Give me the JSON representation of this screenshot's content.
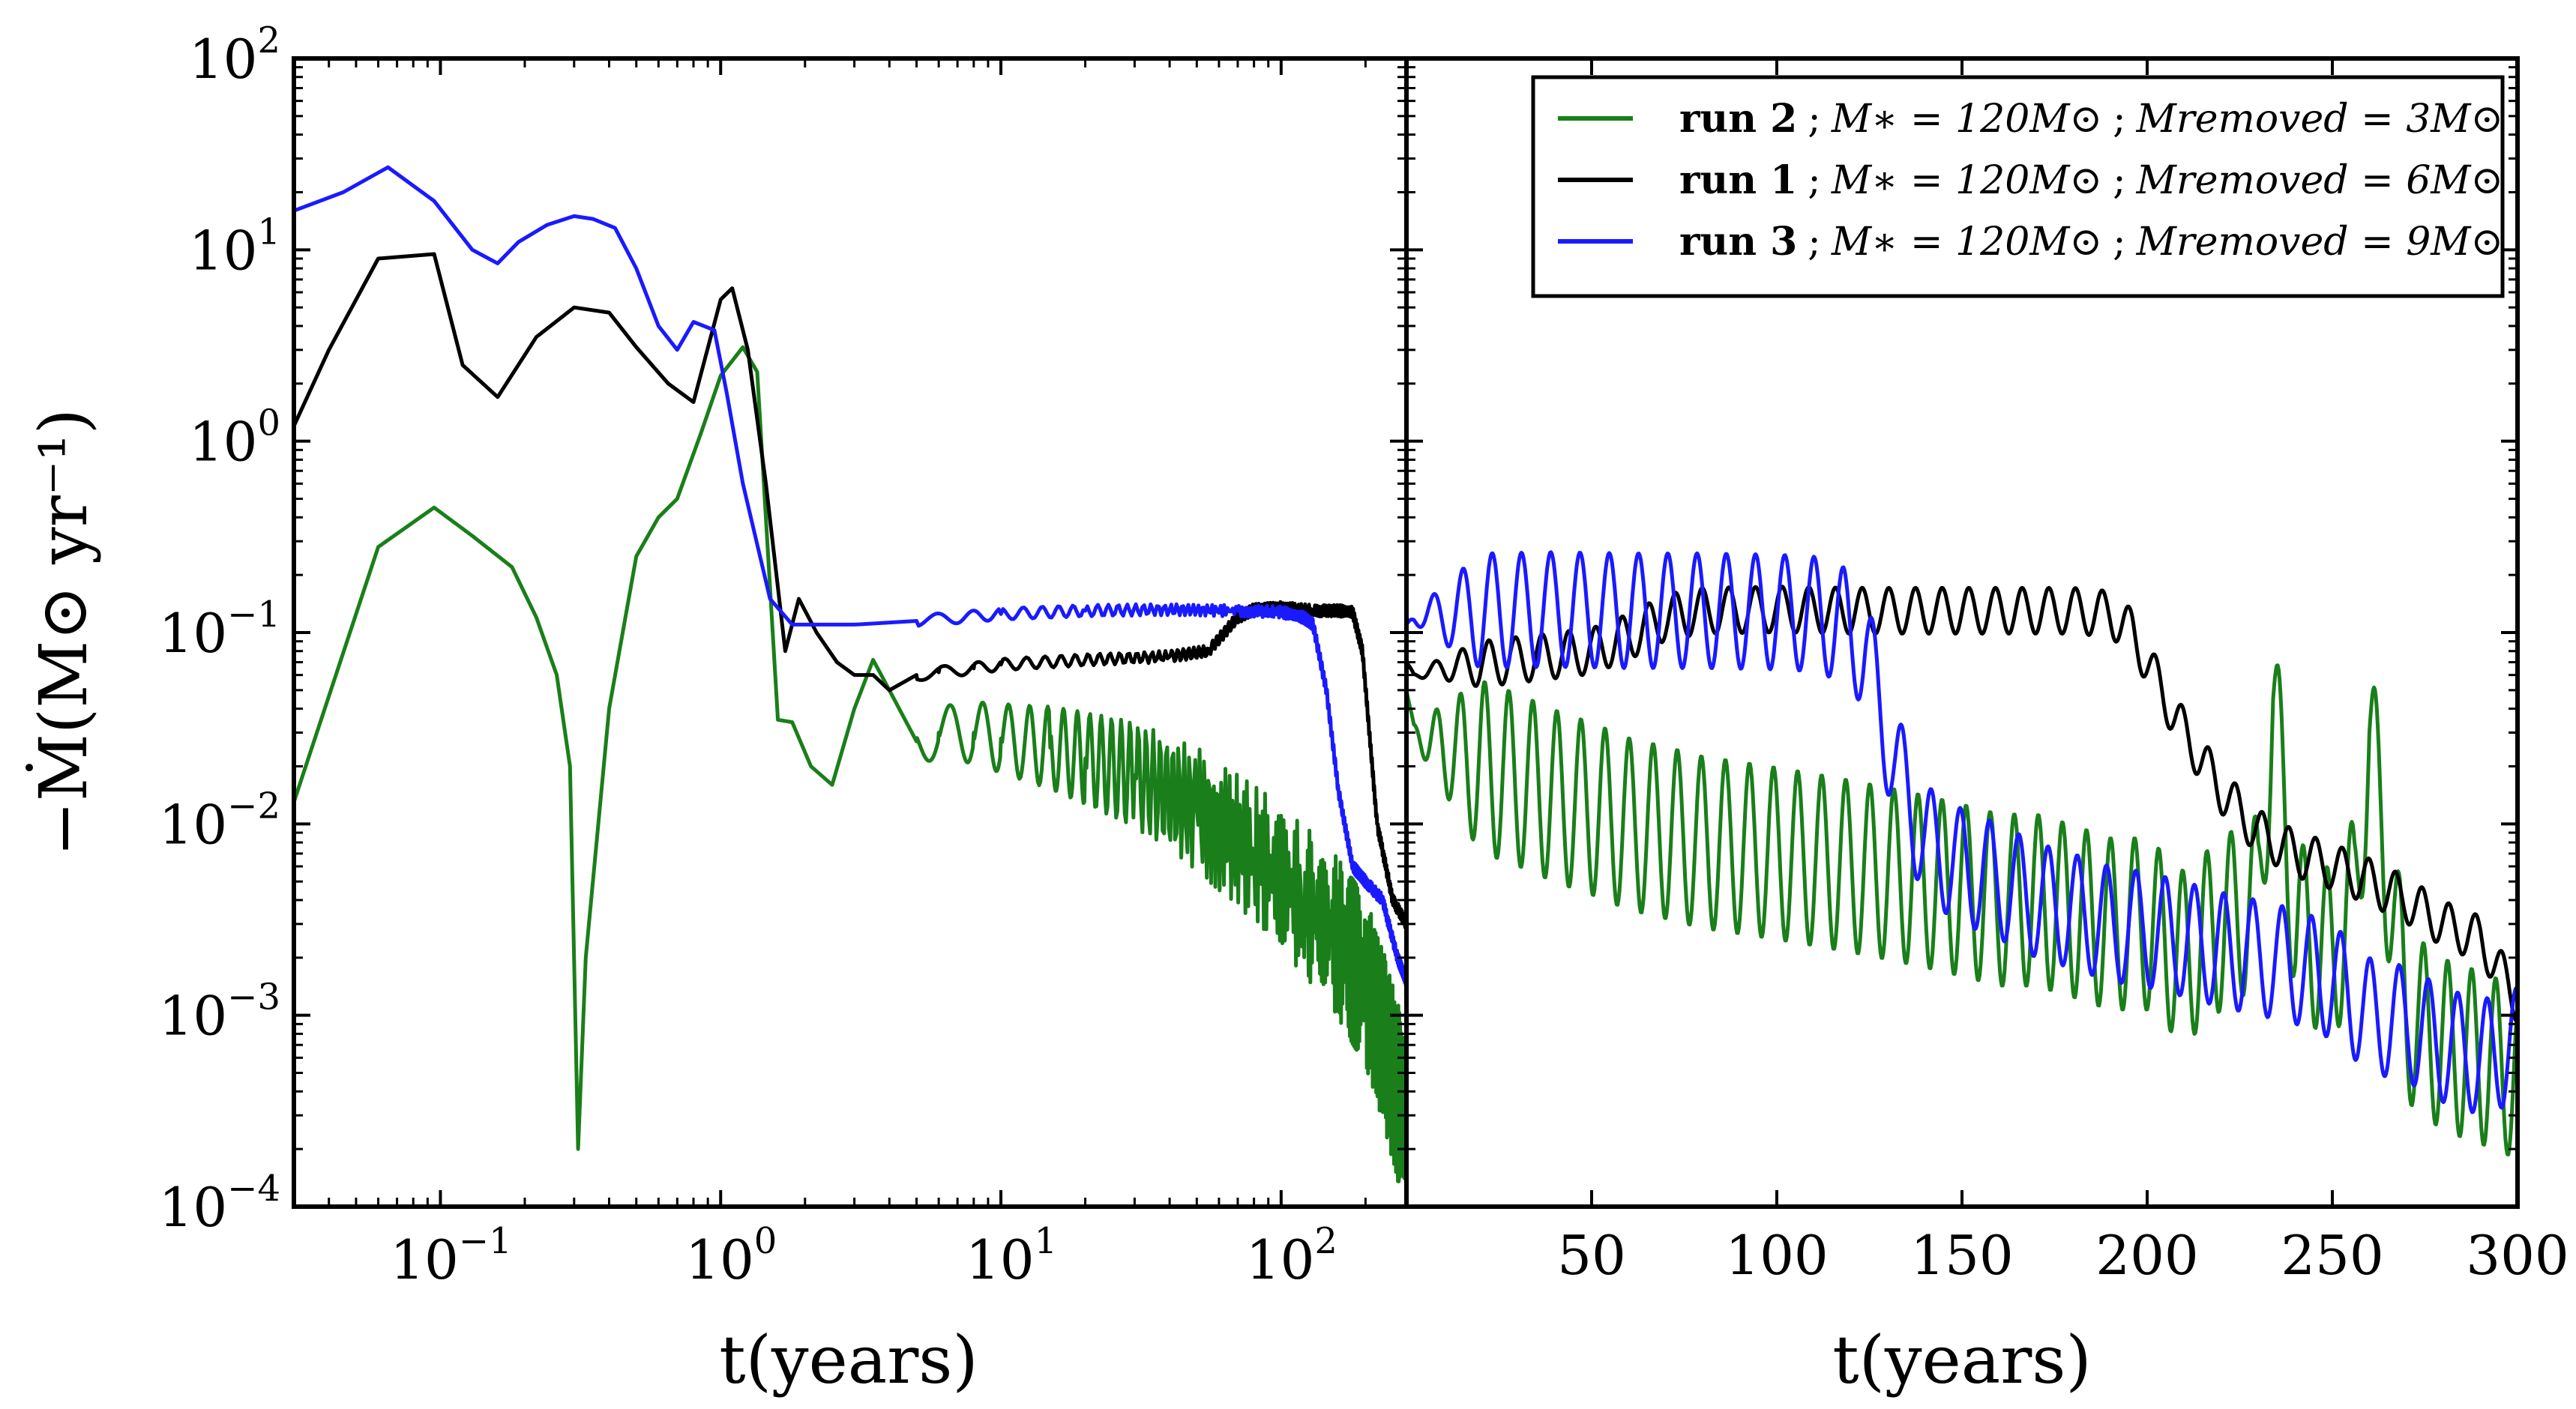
{
  "chart_data": [
    {
      "panel": "left",
      "type": "line",
      "x_scale": "log",
      "y_scale": "log",
      "xlim": [
        0.03,
        280
      ],
      "ylim": [
        0.0001,
        100
      ],
      "xlabel": "t(years)",
      "ylabel": "−Ṁ(M⊙ yr⁻¹)",
      "x_ticks": [
        {
          "value": 0.1,
          "base": "10",
          "exp": "−1"
        },
        {
          "value": 1,
          "base": "10",
          "exp": "0"
        },
        {
          "value": 10,
          "base": "10",
          "exp": "1"
        },
        {
          "value": 100,
          "base": "10",
          "exp": "2"
        }
      ],
      "y_ticks": [
        {
          "value": 0.0001,
          "base": "10",
          "exp": "−4"
        },
        {
          "value": 0.001,
          "base": "10",
          "exp": "−3"
        },
        {
          "value": 0.01,
          "base": "10",
          "exp": "−2"
        },
        {
          "value": 0.1,
          "base": "10",
          "exp": "−1"
        },
        {
          "value": 1,
          "base": "10",
          "exp": "0"
        },
        {
          "value": 10,
          "base": "10",
          "exp": "1"
        },
        {
          "value": 100,
          "base": "10",
          "exp": "2"
        }
      ],
      "series": [
        {
          "name": "run 2",
          "color": "#1a7f1a",
          "x": [
            0.03,
            0.06,
            0.095,
            0.13,
            0.18,
            0.22,
            0.26,
            0.29,
            0.31,
            0.33,
            0.4,
            0.5,
            0.6,
            0.7,
            0.85,
            1.0,
            1.2,
            1.35,
            1.6,
            1.8,
            2.1,
            2.5,
            3.0,
            3.5,
            4.0,
            5.0,
            6.0,
            8.0,
            10.0,
            15.0,
            20.0,
            30.0,
            50.0,
            80.0,
            120.0,
            160.0,
            200.0,
            230.0,
            260.0,
            280.0
          ],
          "y": [
            0.013,
            0.28,
            0.45,
            0.32,
            0.22,
            0.12,
            0.06,
            0.02,
            0.0002,
            0.002,
            0.04,
            0.25,
            0.4,
            0.5,
            1.1,
            2.2,
            3.1,
            2.3,
            0.035,
            0.034,
            0.02,
            0.016,
            0.04,
            0.072,
            0.05,
            0.027,
            0.03,
            0.03,
            0.028,
            0.025,
            0.022,
            0.018,
            0.012,
            0.007,
            0.004,
            0.0025,
            0.0015,
            0.0008,
            0.0004,
            0.0003
          ]
        },
        {
          "name": "run 1",
          "color": "#000000",
          "x": [
            0.03,
            0.04,
            0.06,
            0.095,
            0.12,
            0.16,
            0.22,
            0.3,
            0.4,
            0.5,
            0.65,
            0.8,
            1.0,
            1.1,
            1.25,
            1.45,
            1.7,
            1.9,
            2.2,
            2.6,
            3.0,
            3.5,
            4.0,
            5.0,
            6.0,
            8.0,
            10.0,
            20.0,
            40.0,
            55.0,
            70.0,
            80.0,
            100.0,
            130.0,
            160.0,
            180.0,
            195.0,
            220.0,
            250.0,
            280.0
          ],
          "y": [
            1.2,
            3.0,
            9.0,
            9.5,
            2.5,
            1.7,
            3.5,
            5.0,
            4.7,
            3.1,
            2.0,
            1.6,
            5.5,
            6.3,
            3.0,
            0.6,
            0.08,
            0.15,
            0.1,
            0.07,
            0.06,
            0.06,
            0.05,
            0.06,
            0.062,
            0.065,
            0.068,
            0.072,
            0.075,
            0.08,
            0.12,
            0.132,
            0.135,
            0.13,
            0.13,
            0.128,
            0.08,
            0.01,
            0.004,
            0.003
          ]
        },
        {
          "name": "run 3",
          "color": "#1a1aff",
          "x": [
            0.03,
            0.045,
            0.065,
            0.095,
            0.13,
            0.16,
            0.19,
            0.24,
            0.3,
            0.35,
            0.42,
            0.5,
            0.6,
            0.7,
            0.8,
            0.95,
            1.05,
            1.2,
            1.5,
            1.8,
            2.2,
            3.0,
            5.0,
            10.0,
            20.0,
            40.0,
            70.0,
            100.0,
            120.0,
            130.0,
            145.0,
            160.0,
            180.0,
            200.0,
            230.0,
            260.0,
            280.0
          ],
          "y": [
            16.0,
            20.0,
            27.0,
            18.0,
            10.0,
            8.5,
            11.0,
            13.5,
            15.0,
            14.5,
            13.0,
            8.0,
            4.0,
            3.0,
            4.2,
            3.8,
            1.8,
            0.6,
            0.15,
            0.11,
            0.11,
            0.11,
            0.115,
            0.125,
            0.13,
            0.132,
            0.13,
            0.128,
            0.12,
            0.11,
            0.05,
            0.015,
            0.006,
            0.005,
            0.004,
            0.002,
            0.0015
          ]
        }
      ]
    },
    {
      "panel": "right",
      "type": "line",
      "x_scale": "linear",
      "y_scale": "log",
      "xlim": [
        0,
        300
      ],
      "ylim": [
        0.0001,
        100
      ],
      "xlabel": "t(years)",
      "x_ticks": [
        50,
        100,
        150,
        200,
        250,
        300
      ],
      "legend": {
        "placement": "top-right",
        "entries": [
          {
            "run": "run 2",
            "sep": ";",
            "mstar": "M∗ = 120M⊙",
            "mremoved": "Mremoved = 3M⊙",
            "color": "#1a7f1a"
          },
          {
            "run": "run 1",
            "sep": ";",
            "mstar": "M∗ = 120M⊙",
            "mremoved": "Mremoved = 6M⊙",
            "color": "#000000"
          },
          {
            "run": "run 3",
            "sep": ";",
            "mstar": "M∗ = 120M⊙",
            "mremoved": "Mremoved = 9M⊙",
            "color": "#1a1aff"
          }
        ]
      },
      "series": [
        {
          "name": "run 2",
          "color": "#1a7f1a",
          "x": [
            0,
            2,
            5,
            10,
            20,
            30,
            40,
            50,
            60,
            70,
            80,
            90,
            100,
            110,
            120,
            130,
            140,
            150,
            160,
            170,
            180,
            190,
            200,
            210,
            220,
            230,
            234,
            240,
            250,
            256,
            260,
            270,
            280,
            290,
            300
          ],
          "y": [
            0.05,
            0.03,
            0.028,
            0.025,
            0.02,
            0.017,
            0.014,
            0.012,
            0.01,
            0.009,
            0.008,
            0.0075,
            0.007,
            0.0065,
            0.006,
            0.0055,
            0.005,
            0.0045,
            0.004,
            0.004,
            0.0035,
            0.003,
            0.003,
            0.002,
            0.003,
            0.004,
            0.045,
            0.003,
            0.002,
            0.004,
            0.03,
            0.001,
            0.0007,
            0.0006,
            0.0005
          ],
          "oscillation": 0.45
        },
        {
          "name": "run 1",
          "color": "#000000",
          "x": [
            0,
            2,
            10,
            30,
            50,
            60,
            70,
            80,
            100,
            120,
            140,
            160,
            180,
            190,
            196,
            200,
            205,
            210,
            220,
            230,
            240,
            250,
            260,
            270,
            280,
            290,
            300
          ],
          "y": [
            0.07,
            0.06,
            0.065,
            0.072,
            0.08,
            0.095,
            0.12,
            0.13,
            0.132,
            0.13,
            0.13,
            0.13,
            0.13,
            0.125,
            0.1,
            0.07,
            0.045,
            0.03,
            0.015,
            0.009,
            0.007,
            0.006,
            0.005,
            0.004,
            0.003,
            0.0025,
            0.0012
          ],
          "oscillation": 0.12
        },
        {
          "name": "run 3",
          "color": "#1a1aff",
          "x": [
            0,
            2,
            20,
            40,
            60,
            80,
            100,
            110,
            118,
            124,
            128,
            132,
            140,
            150,
            160,
            170,
            180,
            190,
            200,
            210,
            220,
            230,
            240,
            250,
            260,
            270,
            280,
            290,
            300
          ],
          "y": [
            0.11,
            0.12,
            0.13,
            0.132,
            0.13,
            0.13,
            0.128,
            0.125,
            0.11,
            0.08,
            0.04,
            0.02,
            0.008,
            0.006,
            0.005,
            0.004,
            0.0035,
            0.003,
            0.0028,
            0.0025,
            0.0022,
            0.002,
            0.0018,
            0.0015,
            0.001,
            0.0009,
            0.0007,
            0.0006,
            0.0007
          ],
          "oscillation": 0.3
        }
      ]
    }
  ]
}
